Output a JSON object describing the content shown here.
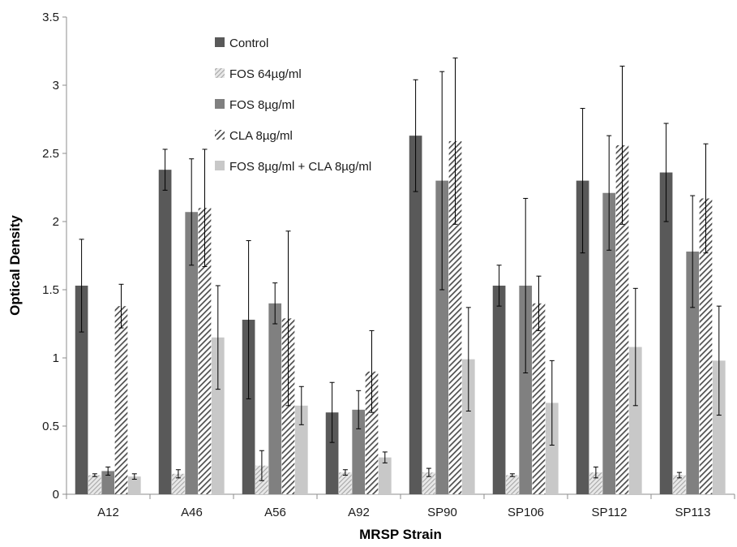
{
  "chart_data": {
    "type": "bar",
    "title": "",
    "xlabel": "MRSP Strain",
    "ylabel": "Optical Density",
    "ylim": [
      0,
      3.5
    ],
    "yticks": [
      "0",
      "0.5",
      "1",
      "1.5",
      "2",
      "2.5",
      "3",
      "3.5"
    ],
    "grid": false,
    "legend_position": "top-center",
    "categories": [
      "A12",
      "A46",
      "A56",
      "A92",
      "SP90",
      "SP106",
      "SP112",
      "SP113"
    ],
    "series": [
      {
        "name": "Control",
        "color": "#595959",
        "pattern": "solid",
        "values": [
          1.53,
          2.38,
          1.28,
          0.6,
          2.63,
          1.53,
          2.3,
          2.36
        ],
        "errors": [
          0.34,
          0.15,
          0.58,
          0.22,
          0.41,
          0.15,
          0.53,
          0.36
        ]
      },
      {
        "name": "FOS 64µg/ml",
        "color": "#a6a6a6",
        "pattern": "light-diagonal",
        "values": [
          0.14,
          0.15,
          0.21,
          0.16,
          0.16,
          0.14,
          0.16,
          0.14
        ],
        "errors": [
          0.01,
          0.03,
          0.11,
          0.02,
          0.03,
          0.01,
          0.04,
          0.02
        ]
      },
      {
        "name": "FOS 8µg/ml",
        "color": "#808080",
        "pattern": "solid",
        "values": [
          0.17,
          2.07,
          1.4,
          0.62,
          2.3,
          1.53,
          2.21,
          1.78
        ],
        "errors": [
          0.03,
          0.39,
          0.15,
          0.14,
          0.8,
          0.64,
          0.42,
          0.41
        ]
      },
      {
        "name": "CLA 8µg/ml",
        "color": "#595959",
        "pattern": "dark-diagonal",
        "values": [
          1.38,
          2.1,
          1.29,
          0.9,
          2.59,
          1.4,
          2.56,
          2.17
        ],
        "errors": [
          0.16,
          0.43,
          0.64,
          0.3,
          0.61,
          0.2,
          0.58,
          0.4
        ]
      },
      {
        "name": "FOS 8µg/ml + CLA 8µg/ml",
        "color": "#c8c8c8",
        "pattern": "solid",
        "values": [
          0.13,
          1.15,
          0.65,
          0.27,
          0.99,
          0.67,
          1.08,
          0.98
        ],
        "errors": [
          0.02,
          0.38,
          0.14,
          0.04,
          0.38,
          0.31,
          0.43,
          0.4
        ]
      }
    ]
  }
}
